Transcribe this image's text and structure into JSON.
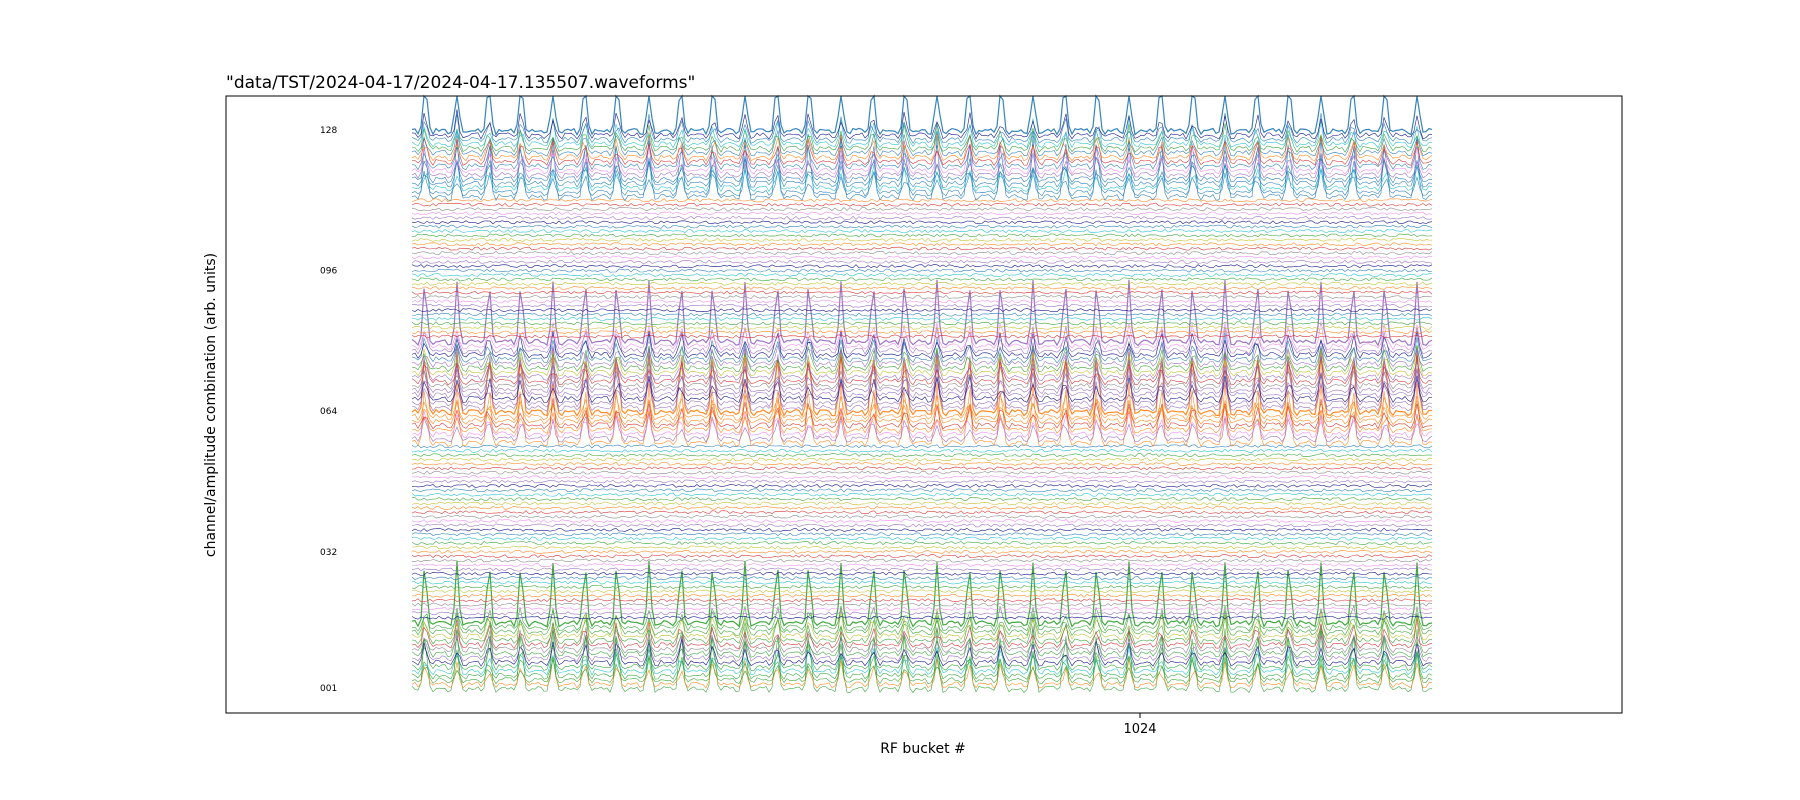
{
  "chart_data": {
    "type": "line",
    "title": "\"data/TST/2024-04-17/2024-04-17.135507.waveforms\"",
    "xlabel": "RF bucket #",
    "ylabel": "channel/amplitude combination (arb. units)",
    "x_ticks": [
      "1024"
    ],
    "x_tick_values": [
      1024
    ],
    "channel_labels": [
      "001",
      "032",
      "064",
      "096",
      "128"
    ],
    "channel_label_values": [
      1,
      32,
      64,
      96,
      128
    ],
    "n_channels": 128,
    "n_pulses": 32,
    "grid": false,
    "series_palette": [
      "#d62728",
      "#ff7f0e",
      "#bcbd22",
      "#2ca02c",
      "#17becf",
      "#1f77b4",
      "#000080",
      "#9467bd",
      "#ee82ee",
      "#7f7f7f"
    ],
    "highlighted_series": [
      {
        "channel_range": [
          1,
          16
        ],
        "pulse_color": "#2ca02c"
      },
      {
        "channel_range": [
          57,
          64
        ],
        "pulse_color": "#ff7f0e"
      },
      {
        "channel_range": [
          65,
          80
        ],
        "pulse_color": "#9467bd"
      },
      {
        "channel_range": [
          113,
          128
        ],
        "pulse_color": "#1f77b4"
      }
    ]
  }
}
